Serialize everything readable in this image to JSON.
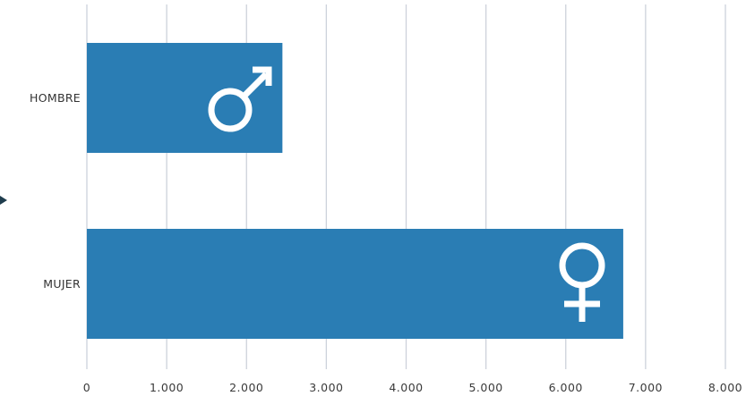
{
  "chart_data": {
    "type": "bar",
    "orientation": "horizontal",
    "title": "",
    "xlabel": "",
    "ylabel": "",
    "categories": [
      "HOMBRE",
      "MUJER"
    ],
    "values": [
      2450,
      6720
    ],
    "xlim": [
      0,
      8000
    ],
    "xticks": [
      0,
      1000,
      2000,
      3000,
      4000,
      5000,
      6000,
      7000,
      8000
    ],
    "xtick_labels": [
      "0",
      "1.000",
      "2.000",
      "3.000",
      "4.000",
      "5.000",
      "6.000",
      "7.000",
      "8.000"
    ],
    "grid": true,
    "legend": "none",
    "bar_icons": [
      "male-symbol",
      "female-symbol"
    ],
    "colors": {
      "bar": "#2a7db4",
      "grid": "#cdd2db",
      "icon": "#ffffff",
      "pointer": "#1f3d4d"
    }
  }
}
